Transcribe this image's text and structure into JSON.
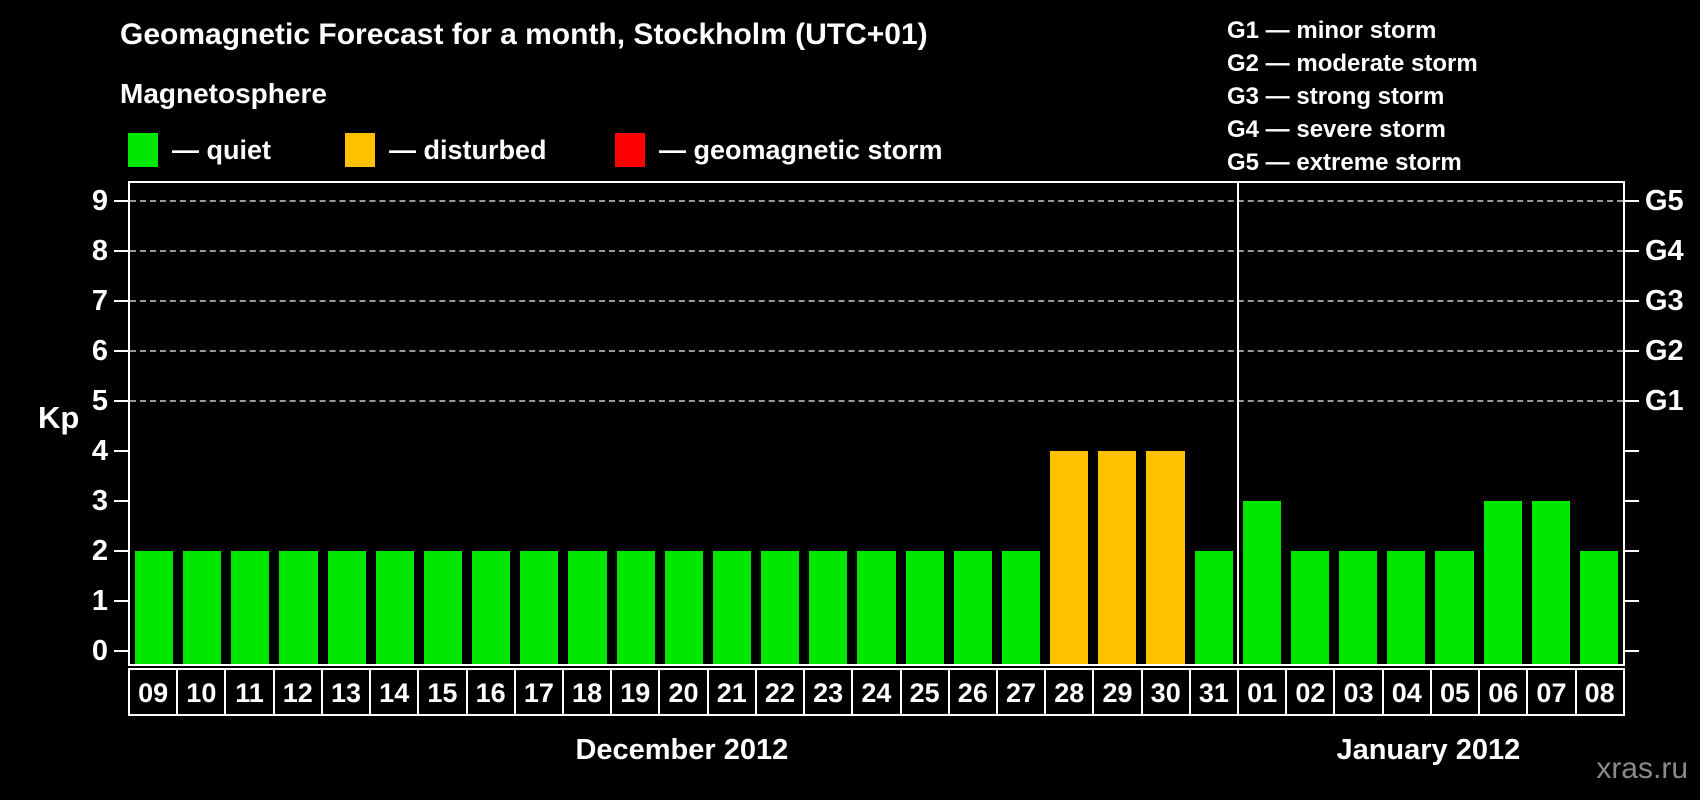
{
  "title": "Geomagnetic Forecast for a month, Stockholm (UTC+01)",
  "subtitle": "Magnetosphere",
  "legend": {
    "items": [
      {
        "key": "quiet",
        "label": "— quiet",
        "color": "#00E800"
      },
      {
        "key": "disturbed",
        "label": "— disturbed",
        "color": "#FFC100"
      },
      {
        "key": "storm",
        "label": "— geomagnetic storm",
        "color": "#FF0000"
      }
    ]
  },
  "g_legend": {
    "items": [
      "G1 — minor storm",
      "G2 — moderate storm",
      "G3 — strong storm",
      "G4 — severe storm",
      "G5 — extreme storm"
    ]
  },
  "watermark": "xras.ru",
  "chart_data": {
    "type": "bar",
    "ylabel": "Kp",
    "ylim": [
      0,
      9.4
    ],
    "y_ticks": [
      0,
      1,
      2,
      3,
      4,
      5,
      6,
      7,
      8,
      9
    ],
    "grid_levels": [
      5,
      6,
      7,
      8,
      9
    ],
    "grid_on": true,
    "right_axis_labels": [
      {
        "label": "G1",
        "level": 5
      },
      {
        "label": "G2",
        "level": 6
      },
      {
        "label": "G3",
        "level": 7
      },
      {
        "label": "G4",
        "level": 8
      },
      {
        "label": "G5",
        "level": 9
      }
    ],
    "categories": [
      "09",
      "10",
      "11",
      "12",
      "13",
      "14",
      "15",
      "16",
      "17",
      "18",
      "19",
      "20",
      "21",
      "22",
      "23",
      "24",
      "25",
      "26",
      "27",
      "28",
      "29",
      "30",
      "31",
      "01",
      "02",
      "03",
      "04",
      "05",
      "06",
      "07",
      "08"
    ],
    "values": [
      2,
      2,
      2,
      2,
      2,
      2,
      2,
      2,
      2,
      2,
      2,
      2,
      2,
      2,
      2,
      2,
      2,
      2,
      2,
      4,
      4,
      4,
      2,
      3,
      2,
      2,
      2,
      2,
      3,
      3,
      2
    ],
    "statuses": [
      "quiet",
      "quiet",
      "quiet",
      "quiet",
      "quiet",
      "quiet",
      "quiet",
      "quiet",
      "quiet",
      "quiet",
      "quiet",
      "quiet",
      "quiet",
      "quiet",
      "quiet",
      "quiet",
      "quiet",
      "quiet",
      "quiet",
      "disturbed",
      "disturbed",
      "disturbed",
      "quiet",
      "quiet",
      "quiet",
      "quiet",
      "quiet",
      "quiet",
      "quiet",
      "quiet",
      "quiet"
    ],
    "status_colors": {
      "quiet": "#00E800",
      "disturbed": "#FFC100",
      "storm": "#FF0000"
    },
    "months": [
      {
        "label": "December 2012",
        "days": 23
      },
      {
        "label": "January 2012",
        "days": 8
      }
    ]
  }
}
